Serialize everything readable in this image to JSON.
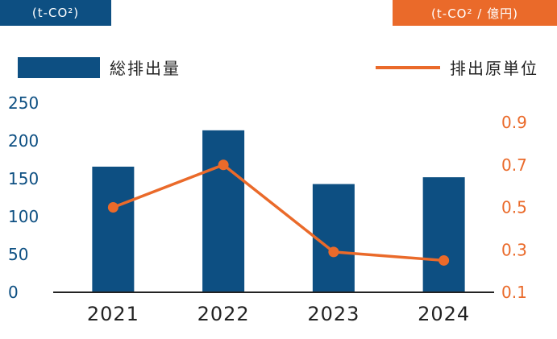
{
  "units": {
    "left": "(t-CO²)",
    "right": "(t-CO² / 億円)"
  },
  "colors": {
    "bar": "#0d4f82",
    "line": "#ea6a2a",
    "axis": "#222222"
  },
  "legend": {
    "bar_label": "総排出量",
    "line_label": "排出原単位"
  },
  "chart_data": {
    "type": "bar+line",
    "categories": [
      "2021",
      "2022",
      "2023",
      "2024"
    ],
    "series": [
      {
        "name": "総排出量",
        "type": "bar",
        "axis": "left",
        "values": [
          166,
          214,
          143,
          152
        ]
      },
      {
        "name": "排出原単位",
        "type": "line",
        "axis": "right",
        "values": [
          0.5,
          0.7,
          0.29,
          0.25
        ]
      }
    ],
    "y_left": {
      "min": 0,
      "max": 250,
      "ticks": [
        "0",
        "50",
        "100",
        "150",
        "200",
        "250"
      ]
    },
    "y_right": {
      "min": 0.1,
      "max": 0.9,
      "ticks": [
        "0.1",
        "0.3",
        "0.5",
        "0.7",
        "0.9"
      ]
    },
    "legend_position": "top",
    "grid": false
  }
}
